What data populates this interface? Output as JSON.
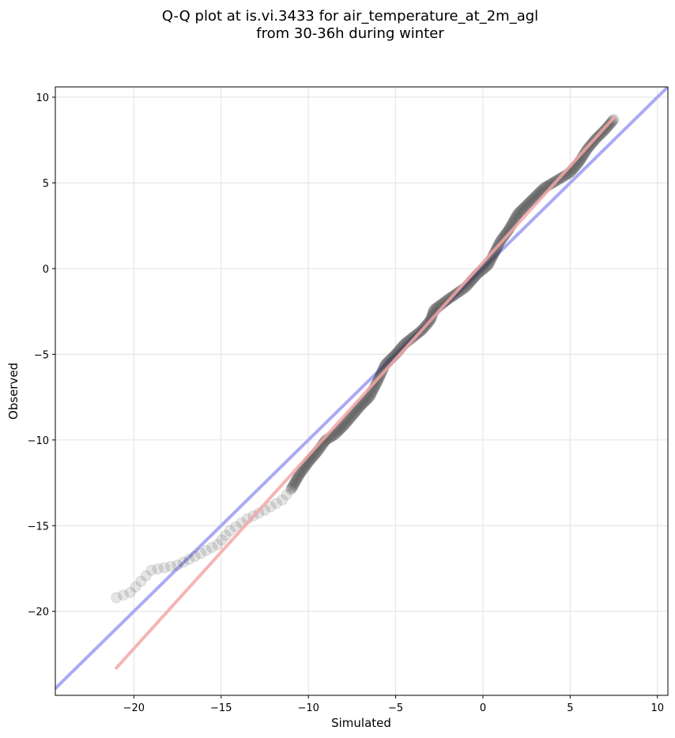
{
  "chart_data": {
    "type": "scatter",
    "title_line1": "Q-Q plot at is.vi.3433 for air_temperature_at_2m_agl",
    "title_line2": "from 30-36h during winter",
    "xlabel": "Simulated",
    "ylabel": "Observed",
    "xlim": [
      -24.5,
      10.6
    ],
    "ylim": [
      -24.9,
      10.6
    ],
    "xticks": [
      -20,
      -15,
      -10,
      -5,
      0,
      5,
      10
    ],
    "yticks": [
      -20,
      -15,
      -10,
      -5,
      0,
      5,
      10
    ],
    "xtick_labels": [
      "−20",
      "−15",
      "−10",
      "−5",
      "0",
      "5",
      "10"
    ],
    "ytick_labels": [
      "−20",
      "−15",
      "−10",
      "−5",
      "0",
      "5",
      "10"
    ],
    "grid": true,
    "reference_line": {
      "color": "#aaaaf4",
      "points": [
        [
          -24.5,
          -24.5
        ],
        [
          10.6,
          10.6
        ]
      ]
    },
    "fit_line": {
      "color": "#f4a7a7",
      "points": [
        [
          -21.0,
          -23.3
        ],
        [
          7.5,
          8.8
        ]
      ]
    },
    "point_color": "#333333",
    "quantile_anchors": [
      [
        -21.0,
        -19.2
      ],
      [
        -20.2,
        -18.9
      ],
      [
        -19.0,
        -17.6
      ],
      [
        -17.5,
        -17.3
      ],
      [
        -16.5,
        -16.8
      ],
      [
        -15.2,
        -16.1
      ],
      [
        -14.5,
        -15.3
      ],
      [
        -13.5,
        -14.6
      ],
      [
        -12.5,
        -14.1
      ],
      [
        -11.5,
        -13.5
      ],
      [
        -11.0,
        -12.9
      ],
      [
        -10.5,
        -12.0
      ],
      [
        -10.0,
        -11.3
      ],
      [
        -9.5,
        -10.7
      ],
      [
        -9.0,
        -10.0
      ],
      [
        -8.5,
        -9.7
      ],
      [
        -8.0,
        -9.2
      ],
      [
        -7.5,
        -8.6
      ],
      [
        -7.0,
        -8.0
      ],
      [
        -6.5,
        -7.5
      ],
      [
        -6.0,
        -6.5
      ],
      [
        -5.6,
        -5.6
      ],
      [
        -5.0,
        -5.0
      ],
      [
        -4.5,
        -4.4
      ],
      [
        -4.0,
        -4.0
      ],
      [
        -3.5,
        -3.6
      ],
      [
        -3.0,
        -3.0
      ],
      [
        -2.8,
        -2.4
      ],
      [
        -2.0,
        -1.8
      ],
      [
        -1.0,
        -1.1
      ],
      [
        -0.3,
        -0.3
      ],
      [
        0.3,
        0.2
      ],
      [
        0.6,
        0.8
      ],
      [
        1.0,
        1.6
      ],
      [
        1.5,
        2.3
      ],
      [
        2.0,
        3.2
      ],
      [
        2.5,
        3.7
      ],
      [
        3.0,
        4.2
      ],
      [
        3.5,
        4.7
      ],
      [
        4.0,
        5.0
      ],
      [
        4.5,
        5.3
      ],
      [
        5.0,
        5.6
      ],
      [
        5.5,
        6.2
      ],
      [
        6.0,
        7.0
      ],
      [
        6.5,
        7.6
      ],
      [
        7.0,
        8.1
      ],
      [
        7.5,
        8.7
      ]
    ]
  }
}
